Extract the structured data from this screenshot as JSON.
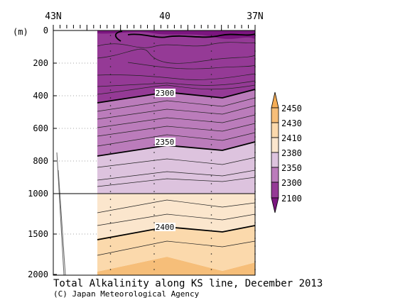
{
  "chart_data": {
    "type": "heatmap",
    "title": "Total Alkalinity along KS line, December 2013",
    "credit": "(C) Japan Meteorological Agency",
    "x_axis": {
      "ticks": [
        "43N",
        "40",
        "37N"
      ],
      "lat_range": [
        43,
        37
      ]
    },
    "y_axis": {
      "unit_label": "(m)",
      "ticks": [
        "0",
        "200",
        "400",
        "600",
        "800",
        "1000",
        "1500",
        "2000"
      ],
      "depth_range": [
        0,
        2000
      ],
      "scale_break": 1000
    },
    "legend": {
      "levels": [
        "2100",
        "2300",
        "2350",
        "2380",
        "2410",
        "2430",
        "2450"
      ],
      "colors": {
        "below_2100": "#7b167f",
        "b_2100_2300": "#953a96",
        "b_2300_2350": "#bb7cbb",
        "b_2350_2380": "#ddc3de",
        "b_2380_2410": "#fbe6cd",
        "b_2410_2430": "#fbd9ac",
        "b_2430_2450": "#f6be79",
        "above_2450": "#f6ad55"
      }
    },
    "contour_labels": [
      {
        "value": "2300",
        "lat": 40.5,
        "depth": 400
      },
      {
        "value": "2350",
        "lat": 40.5,
        "depth": 690
      },
      {
        "value": "2400",
        "lat": 40.5,
        "depth": 1430
      }
    ],
    "station_lats": [
      41.3,
      40,
      38.3,
      37
    ]
  }
}
